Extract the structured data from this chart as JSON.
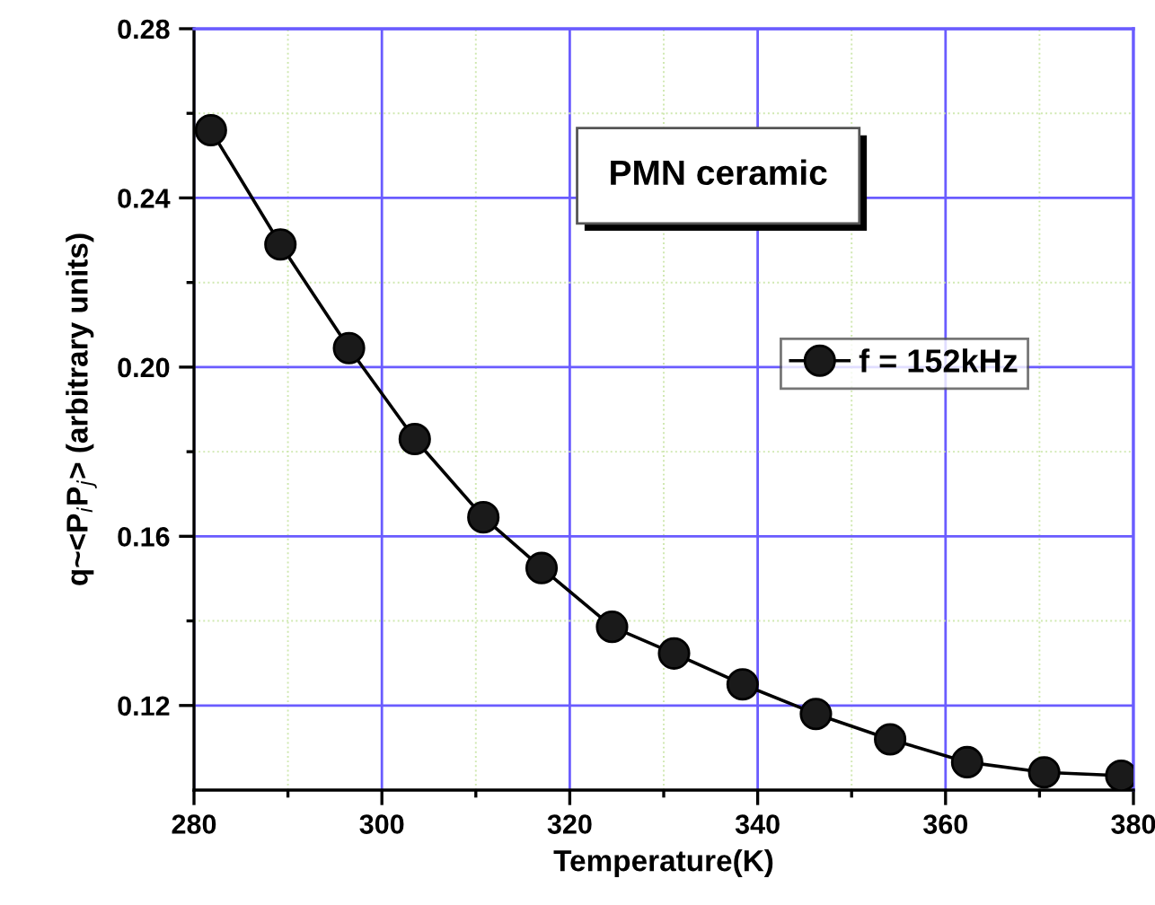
{
  "chart_data": {
    "type": "line",
    "xlabel": "Temperature(K)",
    "ylabel": "q~<P$_{i}$P$_{j}$> (arbitrary units)",
    "annotations": [
      "PMN ceramic"
    ],
    "x": [
      281.8,
      289.2,
      296.5,
      303.5,
      310.8,
      317.0,
      324.5,
      331.1,
      338.4,
      346.2,
      354.1,
      362.3,
      370.5,
      378.7
    ],
    "series": [
      {
        "name": "f = 152kHz",
        "color": "#000000",
        "values": [
          0.256,
          0.229,
          0.2045,
          0.183,
          0.1645,
          0.1525,
          0.1386,
          0.1323,
          0.125,
          0.118,
          0.112,
          0.1066,
          0.1042,
          0.1034
        ]
      }
    ],
    "xlim": [
      280,
      380
    ],
    "xticks": [
      280,
      {
        "value": 290,
        "label": null
      },
      300,
      {
        "value": 310,
        "label": null
      },
      320,
      {
        "value": 330,
        "label": null
      },
      340,
      {
        "value": 350,
        "label": null
      },
      360,
      {
        "value": 370,
        "label": null
      },
      380
    ],
    "ylim": [
      0.1,
      0.28
    ],
    "yticks": [
      {
        "value": 0.12,
        "label": "0.12"
      },
      {
        "value": 0.14,
        "label": null
      },
      {
        "value": 0.16,
        "label": "0.16"
      },
      {
        "value": 0.18,
        "label": null
      },
      {
        "value": 0.2,
        "label": "0.20"
      },
      {
        "value": 0.22,
        "label": null
      },
      {
        "value": 0.24,
        "label": "0.24"
      },
      {
        "value": 0.26,
        "label": null
      },
      {
        "value": 0.28,
        "label": "0.28"
      }
    ],
    "grid": true,
    "legend": "right",
    "marker": "circle",
    "line_style": "solid"
  }
}
